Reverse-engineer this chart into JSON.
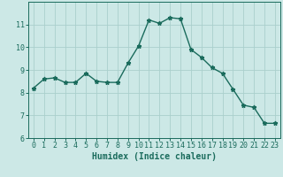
{
  "x": [
    0,
    1,
    2,
    3,
    4,
    5,
    6,
    7,
    8,
    9,
    10,
    11,
    12,
    13,
    14,
    15,
    16,
    17,
    18,
    19,
    20,
    21,
    22,
    23
  ],
  "y": [
    8.2,
    8.6,
    8.65,
    8.45,
    8.45,
    8.85,
    8.5,
    8.45,
    8.45,
    9.3,
    10.05,
    11.2,
    11.05,
    11.3,
    11.25,
    9.9,
    9.55,
    9.1,
    8.85,
    8.15,
    7.45,
    7.35,
    6.65,
    6.65
  ],
  "xlabel": "Humidex (Indice chaleur)",
  "xlim": [
    -0.5,
    23.5
  ],
  "ylim": [
    6,
    12
  ],
  "yticks": [
    6,
    7,
    8,
    9,
    10,
    11
  ],
  "xticks": [
    0,
    1,
    2,
    3,
    4,
    5,
    6,
    7,
    8,
    9,
    10,
    11,
    12,
    13,
    14,
    15,
    16,
    17,
    18,
    19,
    20,
    21,
    22,
    23
  ],
  "bg_color": "#cce8e6",
  "line_color": "#1a6b5c",
  "grid_color": "#aacfcc",
  "marker": "*",
  "marker_size": 3.5,
  "line_width": 1.0,
  "tick_fontsize": 6.0,
  "xlabel_fontsize": 7.0
}
